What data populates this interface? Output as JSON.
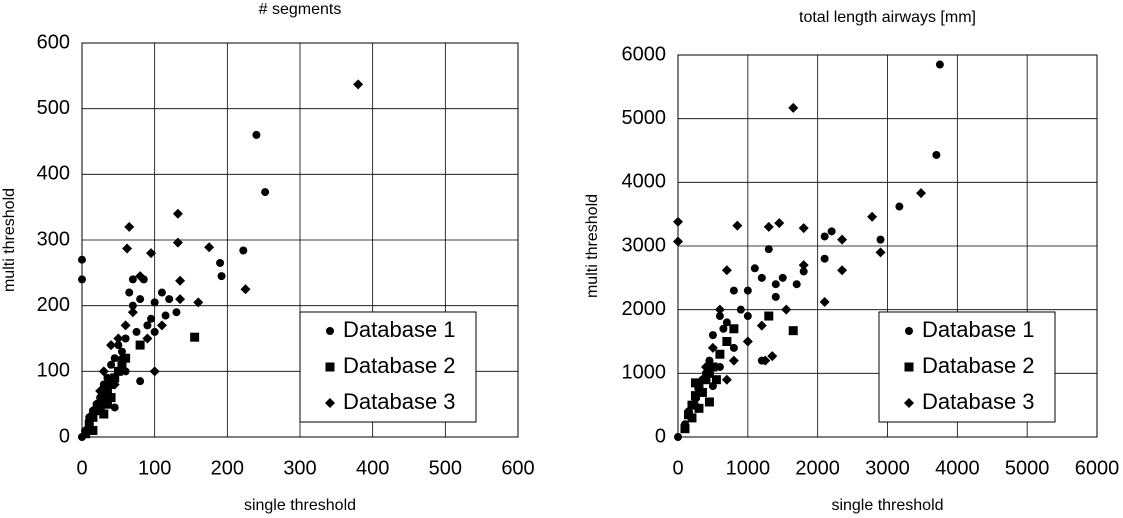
{
  "chart_data": [
    {
      "type": "scatter",
      "title": "# segments",
      "x_label": "single threshold",
      "y_label": "multi threshold",
      "xlim": [
        0,
        600
      ],
      "ylim": [
        0,
        600
      ],
      "xticks": [
        0,
        100,
        200,
        300,
        400,
        500,
        600
      ],
      "yticks": [
        0,
        100,
        200,
        300,
        400,
        500,
        600
      ],
      "grid": true,
      "legend": "lower right",
      "series": [
        {
          "name": "Database 1",
          "color": "#000000",
          "marker": "circle",
          "x": [
            0,
            0,
            240,
            252,
            222,
            190,
            192,
            130,
            120,
            110,
            100,
            95,
            90,
            85,
            80,
            75,
            70,
            65,
            60,
            55,
            50,
            45,
            40,
            35,
            30,
            25,
            20,
            15,
            10,
            5,
            0,
            80,
            100,
            115,
            70,
            60,
            45
          ],
          "y": [
            240,
            270,
            460,
            373,
            284,
            265,
            245,
            190,
            210,
            220,
            160,
            180,
            170,
            240,
            210,
            160,
            200,
            220,
            150,
            130,
            140,
            120,
            110,
            90,
            80,
            60,
            50,
            40,
            30,
            10,
            0,
            85,
            205,
            185,
            240,
            100,
            45
          ]
        },
        {
          "name": "Database 2",
          "color": "#000000",
          "marker": "square",
          "x": [
            5,
            10,
            15,
            20,
            25,
            30,
            35,
            40,
            45,
            50,
            55,
            60,
            80,
            155,
            30,
            25,
            35,
            15,
            40
          ],
          "y": [
            5,
            20,
            30,
            40,
            50,
            60,
            70,
            80,
            90,
            100,
            110,
            120,
            140,
            152,
            35,
            45,
            50,
            10,
            60
          ]
        },
        {
          "name": "Database 3",
          "color": "#000000",
          "marker": "diamond",
          "x": [
            380,
            132,
            65,
            62,
            132,
            95,
            175,
            225,
            160,
            135,
            135,
            100,
            80,
            70,
            60,
            50,
            40,
            30,
            25,
            20,
            45,
            55,
            90,
            110
          ],
          "y": [
            537,
            340,
            320,
            287,
            296,
            280,
            289,
            225,
            205,
            238,
            210,
            100,
            245,
            190,
            170,
            150,
            140,
            100,
            70,
            40,
            80,
            120,
            150,
            170
          ]
        }
      ]
    },
    {
      "type": "scatter",
      "title": "total length airways [mm]",
      "x_label": "single threshold",
      "y_label": "multi threshold",
      "xlim": [
        0,
        6000
      ],
      "ylim": [
        0,
        6000
      ],
      "xticks": [
        0,
        1000,
        2000,
        3000,
        4000,
        5000,
        6000
      ],
      "yticks": [
        0,
        1000,
        2000,
        3000,
        4000,
        5000,
        6000
      ],
      "grid": true,
      "legend": "lower right",
      "series": [
        {
          "name": "Database 1",
          "color": "#000000",
          "marker": "circle",
          "x": [
            0,
            3750,
            3700,
            3170,
            2900,
            2200,
            2100,
            2100,
            1800,
            1700,
            1500,
            1400,
            1300,
            1200,
            1100,
            1000,
            900,
            800,
            700,
            650,
            600,
            500,
            450,
            400,
            350,
            300,
            250,
            200,
            150,
            100,
            800,
            1000,
            1200,
            1400,
            600,
            500,
            300
          ],
          "y": [
            0,
            5850,
            4430,
            3620,
            3100,
            3230,
            3150,
            2800,
            2600,
            2400,
            2500,
            2400,
            2950,
            2500,
            2650,
            2300,
            2000,
            2300,
            1800,
            1700,
            1900,
            1600,
            1200,
            1000,
            900,
            800,
            600,
            500,
            400,
            200,
            1400,
            1900,
            1200,
            2200,
            1100,
            800,
            700
          ]
        },
        {
          "name": "Database 2",
          "color": "#000000",
          "marker": "square",
          "x": [
            100,
            150,
            200,
            250,
            300,
            350,
            400,
            450,
            500,
            550,
            600,
            700,
            800,
            1300,
            1650,
            450,
            300,
            250,
            200
          ],
          "y": [
            130,
            350,
            500,
            650,
            800,
            700,
            900,
            1000,
            1100,
            900,
            1300,
            1500,
            1700,
            1900,
            1670,
            550,
            450,
            850,
            300
          ]
        },
        {
          "name": "Database 3",
          "color": "#000000",
          "marker": "diamond",
          "x": [
            0,
            0,
            1650,
            3480,
            2780,
            2900,
            2350,
            2350,
            2100,
            1800,
            1450,
            1300,
            850,
            1350,
            1250,
            1800,
            1550,
            1200,
            700,
            600,
            500,
            400,
            300,
            250,
            1000,
            800,
            700
          ],
          "y": [
            3380,
            3070,
            5170,
            3830,
            3460,
            2900,
            3100,
            2620,
            2120,
            3280,
            3360,
            3300,
            3320,
            1270,
            1200,
            2700,
            2000,
            1750,
            2620,
            2000,
            1400,
            1100,
            700,
            500,
            1500,
            1200,
            900
          ]
        }
      ]
    }
  ]
}
